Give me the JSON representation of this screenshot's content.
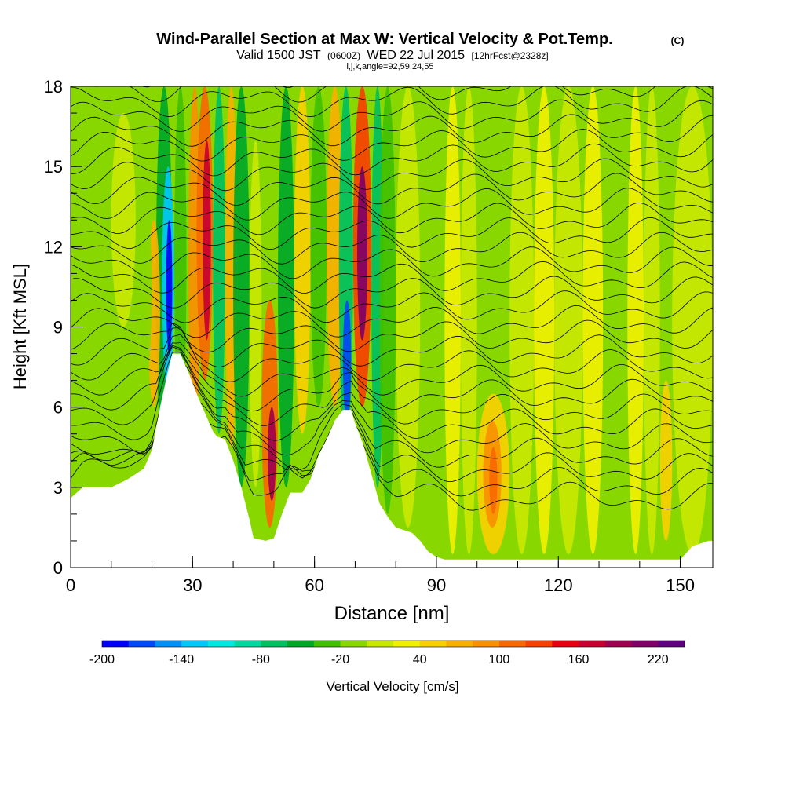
{
  "header": {
    "title": "Wind-Parallel Section at Max W: Vertical Velocity & Pot.Temp.",
    "copyright": "(C)",
    "valid_prefix": "Valid 1500 JST",
    "valid_utc": "(0600Z)",
    "valid_date": "WED 22 Jul 2015",
    "forecast": "[12hrFcst@2328z]",
    "indices": "i,j,k,angle=92,59,24,55"
  },
  "chart_data": {
    "type": "heatmap",
    "xlabel": "Distance [nm]",
    "ylabel": "Height [Kft MSL]",
    "xlim": [
      0,
      158
    ],
    "ylim": [
      0,
      18
    ],
    "x_ticks": [
      "0",
      "30",
      "60",
      "90",
      "120",
      "150"
    ],
    "x_tick_values": [
      0,
      30,
      60,
      90,
      120,
      150
    ],
    "y_ticks": [
      "0",
      "3",
      "6",
      "9",
      "12",
      "15",
      "18"
    ],
    "y_tick_values": [
      0,
      3,
      6,
      9,
      12,
      15,
      18
    ],
    "terrain_profile": [
      [
        0,
        2.6
      ],
      [
        3,
        3.0
      ],
      [
        10,
        3.0
      ],
      [
        14,
        3.3
      ],
      [
        18,
        3.7
      ],
      [
        20,
        4.4
      ],
      [
        22,
        6.0
      ],
      [
        24,
        7.4
      ],
      [
        25,
        8.0
      ],
      [
        27,
        8.0
      ],
      [
        29,
        7.3
      ],
      [
        31,
        6.5
      ],
      [
        33,
        5.8
      ],
      [
        35,
        5.1
      ],
      [
        36,
        4.9
      ],
      [
        38,
        4.8
      ],
      [
        40,
        4.0
      ],
      [
        42,
        3.0
      ],
      [
        44,
        1.8
      ],
      [
        45,
        1.1
      ],
      [
        48,
        1.0
      ],
      [
        50,
        1.1
      ],
      [
        52,
        2.0
      ],
      [
        54,
        2.8
      ],
      [
        57,
        2.8
      ],
      [
        59,
        3.3
      ],
      [
        61,
        4.2
      ],
      [
        63,
        4.8
      ],
      [
        65,
        5.5
      ],
      [
        67,
        5.9
      ],
      [
        69,
        5.9
      ],
      [
        70,
        5.4
      ],
      [
        72,
        4.6
      ],
      [
        74,
        3.5
      ],
      [
        76,
        2.4
      ],
      [
        78,
        1.9
      ],
      [
        80,
        1.5
      ],
      [
        82,
        1.4
      ],
      [
        84,
        1.3
      ],
      [
        86,
        1.0
      ],
      [
        88,
        0.6
      ],
      [
        90,
        0.4
      ],
      [
        92,
        0.3
      ],
      [
        150,
        0.3
      ],
      [
        153,
        0.8
      ],
      [
        157,
        1.0
      ],
      [
        158,
        1.0
      ]
    ],
    "velocity_cells": [
      {
        "x": [
          21,
          25
        ],
        "y": [
          4,
          18
        ],
        "w": -60
      },
      {
        "x": [
          22.5,
          25.5
        ],
        "y": [
          6.5,
          15
        ],
        "w": -140
      },
      {
        "x": [
          23.5,
          25
        ],
        "y": [
          8,
          13
        ],
        "w": -190
      },
      {
        "x": [
          19,
          22
        ],
        "y": [
          6,
          13
        ],
        "w": 60
      },
      {
        "x": [
          25.5,
          28.5
        ],
        "y": [
          5,
          18
        ],
        "w": -40
      },
      {
        "x": [
          29,
          32
        ],
        "y": [
          5,
          18
        ],
        "w": 80
      },
      {
        "x": [
          31,
          35
        ],
        "y": [
          7,
          18
        ],
        "w": 110
      },
      {
        "x": [
          32.5,
          34.5
        ],
        "y": [
          8.5,
          16
        ],
        "w": 160
      },
      {
        "x": [
          35,
          38
        ],
        "y": [
          5,
          18
        ],
        "w": -80
      },
      {
        "x": [
          38,
          41
        ],
        "y": [
          4.5,
          18
        ],
        "w": 60
      },
      {
        "x": [
          40,
          44
        ],
        "y": [
          3,
          18
        ],
        "w": -60
      },
      {
        "x": [
          44,
          47
        ],
        "y": [
          3,
          16
        ],
        "w": 0
      },
      {
        "x": [
          47,
          51
        ],
        "y": [
          1.5,
          10
        ],
        "w": 110
      },
      {
        "x": [
          48.5,
          50.5
        ],
        "y": [
          2.5,
          6
        ],
        "w": 180
      },
      {
        "x": [
          51,
          55
        ],
        "y": [
          3,
          18
        ],
        "w": -60
      },
      {
        "x": [
          55,
          59
        ],
        "y": [
          5,
          18
        ],
        "w": 40
      },
      {
        "x": [
          59,
          63
        ],
        "y": [
          6,
          18
        ],
        "w": -40
      },
      {
        "x": [
          63,
          67
        ],
        "y": [
          6,
          18
        ],
        "w": 60
      },
      {
        "x": [
          66,
          69.5
        ],
        "y": [
          4.5,
          18
        ],
        "w": -80
      },
      {
        "x": [
          67,
          69
        ],
        "y": [
          5.5,
          10
        ],
        "w": -180
      },
      {
        "x": [
          69.5,
          74
        ],
        "y": [
          6,
          18
        ],
        "w": 120
      },
      {
        "x": [
          70.5,
          73
        ],
        "y": [
          8.5,
          15
        ],
        "w": 200
      },
      {
        "x": [
          74,
          77
        ],
        "y": [
          3,
          18
        ],
        "w": -80
      },
      {
        "x": [
          76,
          80
        ],
        "y": [
          2,
          18
        ],
        "w": -40
      },
      {
        "x": [
          80,
          86
        ],
        "y": [
          1.5,
          18
        ],
        "w": 0
      },
      {
        "x": [
          86,
          92
        ],
        "y": [
          0.5,
          18
        ],
        "w": -10
      },
      {
        "x": [
          92,
          96
        ],
        "y": [
          0.5,
          18
        ],
        "w": 20
      },
      {
        "x": [
          96,
          100
        ],
        "y": [
          0.5,
          18
        ],
        "w": 0
      },
      {
        "x": [
          100,
          108
        ],
        "y": [
          0.5,
          6.5
        ],
        "w": 50
      },
      {
        "x": [
          101.5,
          106
        ],
        "y": [
          1.5,
          5.5
        ],
        "w": 90
      },
      {
        "x": [
          103,
          105
        ],
        "y": [
          2,
          4.5
        ],
        "w": 110
      },
      {
        "x": [
          108,
          114
        ],
        "y": [
          0.5,
          18
        ],
        "w": 0
      },
      {
        "x": [
          114,
          119
        ],
        "y": [
          0.5,
          18
        ],
        "w": 20
      },
      {
        "x": [
          119,
          126
        ],
        "y": [
          0.5,
          18
        ],
        "w": 0
      },
      {
        "x": [
          126,
          131
        ],
        "y": [
          0.5,
          18
        ],
        "w": 20
      },
      {
        "x": [
          131,
          137
        ],
        "y": [
          0.5,
          18
        ],
        "w": -10
      },
      {
        "x": [
          137,
          141
        ],
        "y": [
          0.5,
          18
        ],
        "w": 20
      },
      {
        "x": [
          141,
          145
        ],
        "y": [
          0.5,
          18
        ],
        "w": 0
      },
      {
        "x": [
          145,
          148
        ],
        "y": [
          1,
          7
        ],
        "w": 40
      },
      {
        "x": [
          148,
          158
        ],
        "y": [
          0.5,
          18
        ],
        "w": 0
      },
      {
        "x": [
          0,
          20
        ],
        "y": [
          2.8,
          18
        ],
        "w": -20
      },
      {
        "x": [
          10,
          16
        ],
        "y": [
          9,
          17
        ],
        "w": 10
      }
    ],
    "theta_contours": {
      "levels": 30,
      "base_kft": 2.6,
      "spacing_kft": 0.55
    }
  },
  "colorbar": {
    "label": "Vertical Velocity [cm/s]",
    "tick_labels": [
      "-200",
      "-140",
      "-80",
      "-20",
      "40",
      "100",
      "160",
      "220"
    ],
    "tick_values": [
      -200,
      -140,
      -80,
      -20,
      40,
      100,
      160,
      220
    ],
    "min": -200,
    "max": 240,
    "step": 20,
    "colors": [
      "#0000f8",
      "#0048f8",
      "#0090f8",
      "#00c8f8",
      "#00e8e0",
      "#00d8a0",
      "#00c060",
      "#00a828",
      "#40c000",
      "#88d800",
      "#c8e800",
      "#f0f000",
      "#f8d000",
      "#f8b000",
      "#f89000",
      "#f86800",
      "#f84000",
      "#e80010",
      "#c80030",
      "#a00050",
      "#800068",
      "#600080"
    ]
  }
}
